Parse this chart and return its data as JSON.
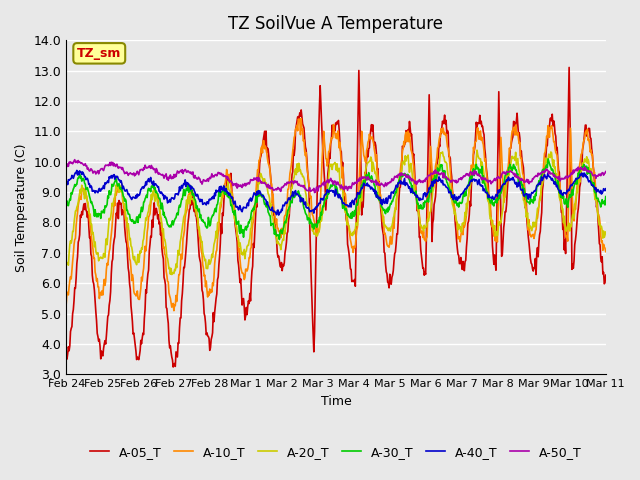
{
  "title": "TZ SoilVue A Temperature",
  "xlabel": "Time",
  "ylabel": "Soil Temperature (C)",
  "ylim": [
    3.0,
    14.0
  ],
  "yticks": [
    3.0,
    4.0,
    5.0,
    6.0,
    7.0,
    8.0,
    9.0,
    10.0,
    11.0,
    12.0,
    13.0,
    14.0
  ],
  "xtick_labels": [
    "Feb 24",
    "Feb 25",
    "Feb 26",
    "Feb 27",
    "Feb 28",
    "Mar 1",
    "Mar 2",
    "Mar 3",
    "Mar 4",
    "Mar 5",
    "Mar 6",
    "Mar 7",
    "Mar 8",
    "Mar 9",
    "Mar 10",
    "Mar 11"
  ],
  "series_colors": {
    "A-05_T": "#cc0000",
    "A-10_T": "#ff8800",
    "A-20_T": "#cccc00",
    "A-30_T": "#00cc00",
    "A-40_T": "#0000cc",
    "A-50_T": "#aa00aa"
  },
  "background_color": "#e8e8e8",
  "plot_bg_color": "#e8e8e8",
  "grid_color": "#ffffff",
  "annotation_text": "TZ_sm",
  "annotation_bg": "#ffff99",
  "annotation_border": "#888800"
}
